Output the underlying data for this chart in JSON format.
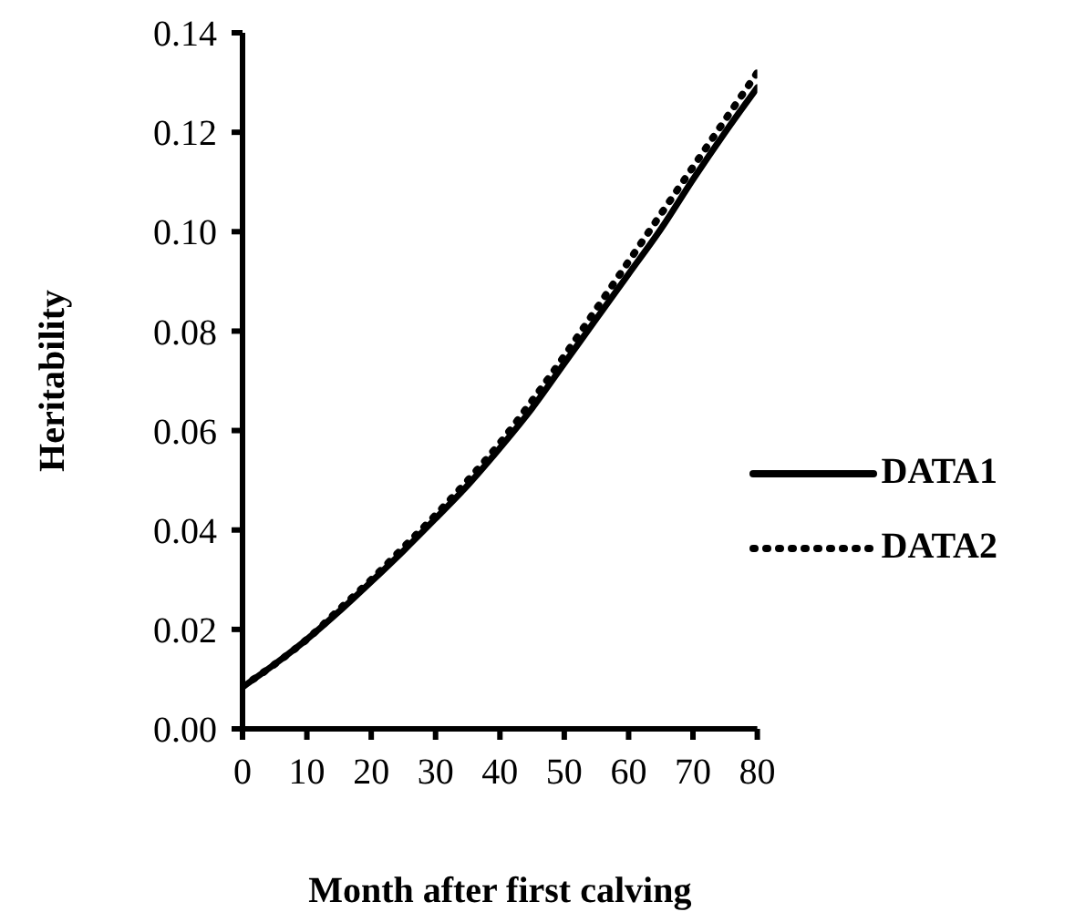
{
  "chart_data": {
    "type": "line",
    "xlabel": "Month after first calving",
    "ylabel": "Heritability",
    "x": [
      0,
      5,
      10,
      15,
      20,
      25,
      30,
      35,
      40,
      45,
      50,
      55,
      60,
      65,
      70,
      75,
      80
    ],
    "series": [
      {
        "name": "DATA1",
        "color": "#000000",
        "line_style": "solid",
        "values": [
          0.0084,
          0.013,
          0.018,
          0.0236,
          0.0296,
          0.0358,
          0.0423,
          0.049,
          0.0565,
          0.0645,
          0.0735,
          0.0825,
          0.0915,
          0.1005,
          0.1105,
          0.12,
          0.129
        ]
      },
      {
        "name": "DATA2",
        "color": "#000000",
        "line_style": "dotted",
        "values": [
          0.0085,
          0.013,
          0.018,
          0.024,
          0.03,
          0.0365,
          0.043,
          0.05,
          0.0575,
          0.066,
          0.075,
          0.0845,
          0.094,
          0.1035,
          0.113,
          0.1225,
          0.132
        ]
      }
    ],
    "xlim": [
      0,
      80
    ],
    "xticks": [
      0,
      10,
      20,
      30,
      40,
      50,
      60,
      70,
      80
    ],
    "ylim": [
      0,
      0.14
    ],
    "yticks": [
      {
        "value": 0,
        "label": "0.00"
      },
      0.02,
      0.04,
      0.06,
      0.08,
      {
        "value": 0.1,
        "label": "0.10"
      },
      0.12,
      0.14
    ],
    "grid": false,
    "legend": "right",
    "marker": "none"
  }
}
